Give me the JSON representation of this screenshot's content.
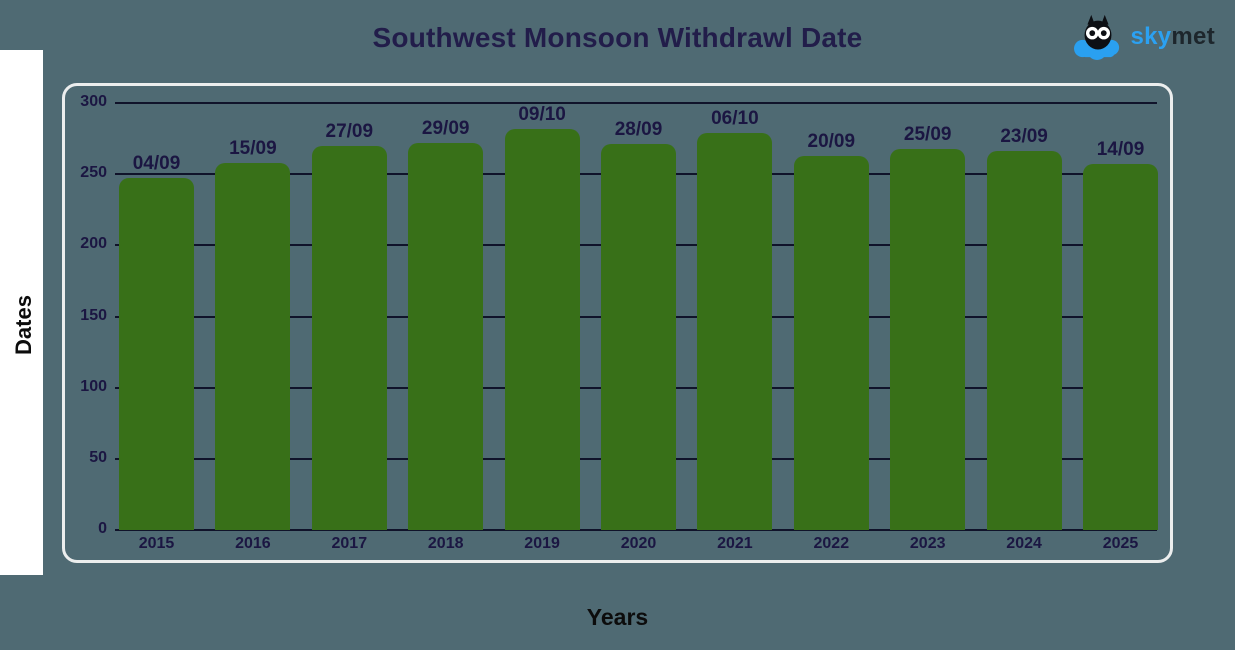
{
  "title": "Southwest Monsoon Withdrawl Date",
  "logo": {
    "sky": "sky",
    "met": "met",
    "sky_color": "#2ba1f2",
    "met_color": "#1d262c",
    "cloud_color": "#2aa0f0",
    "owl_color": "#0d0f14"
  },
  "chart_data": {
    "type": "bar",
    "title": "Southwest Monsoon Withdrawl Date",
    "xlabel": "Years",
    "ylabel": "Dates",
    "ylim": [
      0,
      300
    ],
    "yticks": [
      300,
      250,
      200,
      150,
      100,
      50,
      0
    ],
    "categories": [
      "2015",
      "2016",
      "2017",
      "2018",
      "2019",
      "2020",
      "2021",
      "2022",
      "2023",
      "2024",
      "2025"
    ],
    "values": [
      247,
      258,
      270,
      272,
      282,
      271,
      279,
      263,
      268,
      266,
      257
    ],
    "bar_labels": [
      "04/09",
      "15/09",
      "27/09",
      "29/09",
      "09/10",
      "28/09",
      "06/10",
      "20/09",
      "25/09",
      "23/09",
      "14/09"
    ],
    "grid": true,
    "legend": false,
    "bar_color": "#387018",
    "background_color": "#4f6a73",
    "gridline_color": "#10132a",
    "label_color": "#1b1642"
  }
}
